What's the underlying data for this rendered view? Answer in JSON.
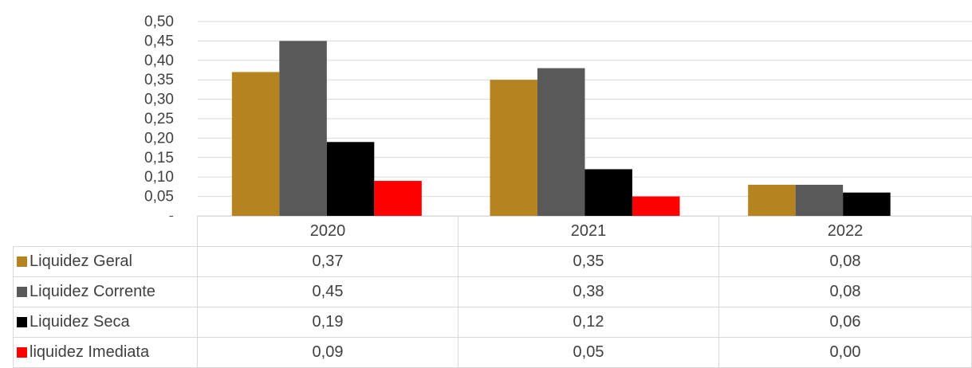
{
  "chart_data": {
    "type": "bar",
    "categories": [
      "2020",
      "2021",
      "2022"
    ],
    "series": [
      {
        "name": "Liquidez Geral",
        "color": "#b5831f",
        "values": [
          0.37,
          0.35,
          0.08
        ],
        "labels": [
          "0,37",
          "0,35",
          "0,08"
        ]
      },
      {
        "name": "Liquidez Corrente",
        "color": "#595959",
        "values": [
          0.45,
          0.38,
          0.08
        ],
        "labels": [
          "0,45",
          "0,38",
          "0,08"
        ]
      },
      {
        "name": "Liquidez Seca",
        "color": "#000000",
        "values": [
          0.19,
          0.12,
          0.06
        ],
        "labels": [
          "0,19",
          "0,12",
          "0,06"
        ]
      },
      {
        "name": "liquidez Imediata",
        "color": "#ff0000",
        "values": [
          0.09,
          0.05,
          0.0
        ],
        "labels": [
          "0,09",
          "0,05",
          "0,00"
        ]
      }
    ],
    "ylim": [
      0,
      0.5
    ],
    "yticks": [
      0.5,
      0.45,
      0.4,
      0.35,
      0.3,
      0.25,
      0.2,
      0.15,
      0.1,
      0.05,
      0
    ],
    "ytick_labels": [
      "0,50",
      "0,45",
      "0,40",
      "0,35",
      "0,30",
      "0,25",
      "0,20",
      "0,15",
      "0,10",
      "0,05",
      "-"
    ],
    "grid": true,
    "legend": "data-table"
  }
}
